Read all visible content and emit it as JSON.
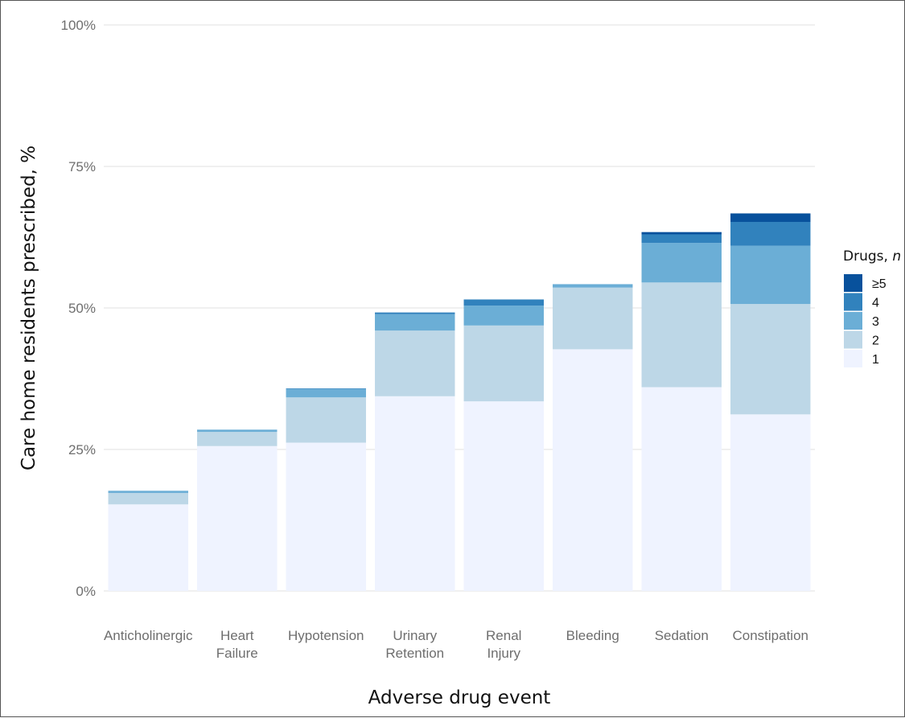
{
  "chart_data": {
    "type": "bar",
    "stacked": true,
    "xlabel": "Adverse drug event",
    "ylabel": "Care home residents prescribed, %",
    "ylim": [
      0,
      100
    ],
    "yticks": [
      "0%",
      "25%",
      "50%",
      "75%",
      "100%"
    ],
    "grid": true,
    "legend_position": "right",
    "legend_title": "Drugs, ",
    "legend_title_italic": "n",
    "categories": [
      "Anticholinergic",
      "Heart Failure",
      "Hypotension",
      "Urinary Retention",
      "Renal Injury",
      "Bleeding",
      "Sedation",
      "Constipation"
    ],
    "category_lines": [
      [
        "Anticholinergic"
      ],
      [
        "Heart",
        "Failure"
      ],
      [
        "Hypotension"
      ],
      [
        "Urinary",
        "Retention"
      ],
      [
        "Renal",
        "Injury"
      ],
      [
        "Bleeding"
      ],
      [
        "Sedation"
      ],
      [
        "Constipation"
      ]
    ],
    "series": [
      {
        "name": "1",
        "color": "#eff3ff",
        "values": [
          15.3,
          25.6,
          26.2,
          34.4,
          33.5,
          42.7,
          36.0,
          31.2
        ]
      },
      {
        "name": "2",
        "color": "#bdd7e7",
        "values": [
          2.0,
          2.5,
          8.0,
          11.6,
          13.4,
          10.9,
          18.5,
          19.5
        ]
      },
      {
        "name": "3",
        "color": "#6baed6",
        "values": [
          0.4,
          0.4,
          1.5,
          2.9,
          3.5,
          0.6,
          7.0,
          10.3
        ]
      },
      {
        "name": "4",
        "color": "#3182bd",
        "values": [
          0.0,
          0.0,
          0.1,
          0.3,
          1.1,
          0.0,
          1.5,
          4.2
        ]
      },
      {
        "name": "≥5",
        "color": "#08519c",
        "values": [
          0.0,
          0.0,
          0.0,
          0.0,
          0.0,
          0.0,
          0.4,
          1.5
        ]
      }
    ]
  }
}
